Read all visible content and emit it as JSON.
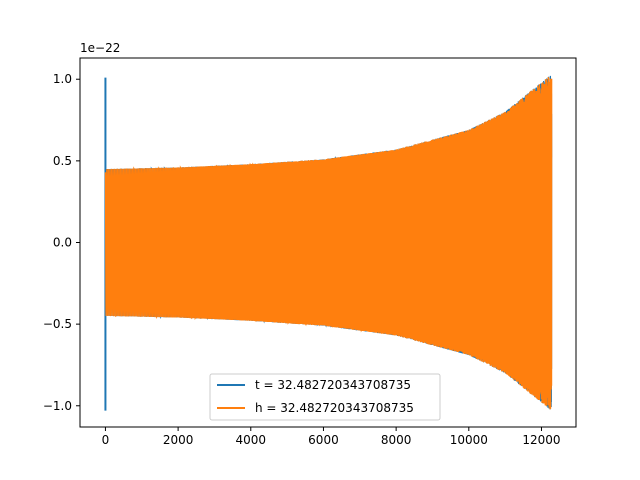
{
  "chart_data": {
    "type": "line",
    "title": "",
    "xlabel": "",
    "ylabel": "",
    "y_offset_label": "1e−22",
    "xlim": [
      -700,
      12950
    ],
    "ylim": [
      -1.13,
      1.13
    ],
    "xticks": [
      0,
      2000,
      4000,
      6000,
      8000,
      10000,
      12000
    ],
    "xtick_labels": [
      "0",
      "2000",
      "4000",
      "6000",
      "8000",
      "10000",
      "12000"
    ],
    "yticks": [
      -1.0,
      -0.5,
      0.0,
      0.5,
      1.0
    ],
    "ytick_labels": [
      "−1.0",
      "−0.5",
      "0.0",
      "0.5",
      "1.0"
    ],
    "grid": false,
    "legend_position": "lower center",
    "series": [
      {
        "name": "t = 32.482720343708735",
        "color": "#1f77b4",
        "description": "gravitational-wave chirp with initial spike",
        "spike": {
          "x": 0,
          "y_max": 1.01,
          "y_min": -1.03
        },
        "x_range": [
          0,
          12280
        ],
        "amplitude_envelope": [
          [
            0,
            0.45
          ],
          [
            2000,
            0.46
          ],
          [
            4000,
            0.48
          ],
          [
            6000,
            0.51
          ],
          [
            8000,
            0.57
          ],
          [
            10000,
            0.69
          ],
          [
            11000,
            0.8
          ],
          [
            12000,
            0.98
          ],
          [
            12280,
            1.03
          ]
        ],
        "cycles": 470
      },
      {
        "name": "h = 32.482720343708735",
        "color": "#ff7f0e",
        "description": "gravitational-wave chirp",
        "x_range": [
          0,
          12280
        ],
        "amplitude_envelope": [
          [
            0,
            0.45
          ],
          [
            2000,
            0.46
          ],
          [
            4000,
            0.48
          ],
          [
            6000,
            0.51
          ],
          [
            8000,
            0.57
          ],
          [
            10000,
            0.69
          ],
          [
            11000,
            0.8
          ],
          [
            12000,
            0.98
          ],
          [
            12280,
            1.03
          ]
        ],
        "cycles": 470
      }
    ]
  }
}
